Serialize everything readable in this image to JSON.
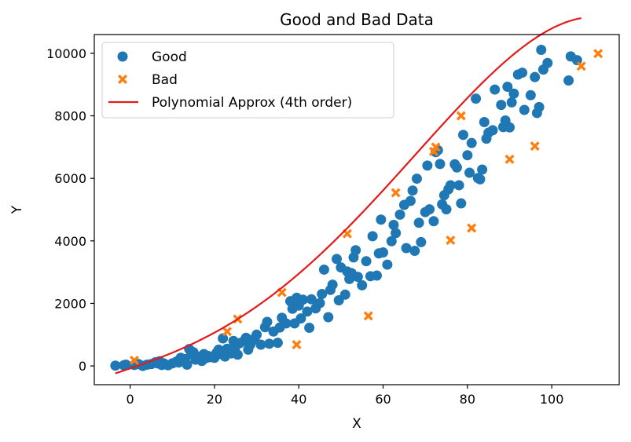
{
  "chart_data": {
    "type": "scatter",
    "title": "Good and Bad Data",
    "xlabel": "X",
    "ylabel": "Y",
    "xlim": [
      -8.5,
      116
    ],
    "ylim": [
      -600,
      10600
    ],
    "xticks": [
      0,
      20,
      40,
      60,
      80,
      100
    ],
    "yticks": [
      0,
      2000,
      4000,
      6000,
      8000,
      10000
    ],
    "grid": false,
    "legend_position": "top-left",
    "series": [
      {
        "name": "Good",
        "type": "scatter",
        "marker": "circle",
        "color": "#1f77b4",
        "points": [
          [
            -3.5,
            10
          ],
          [
            -1.5,
            20
          ],
          [
            -1,
            40
          ],
          [
            1,
            30
          ],
          [
            2,
            60
          ],
          [
            3,
            0
          ],
          [
            4,
            40
          ],
          [
            5,
            60
          ],
          [
            6,
            120
          ],
          [
            6.5,
            80
          ],
          [
            7,
            150
          ],
          [
            7.5,
            30
          ],
          [
            8,
            80
          ],
          [
            9,
            20
          ],
          [
            10,
            80
          ],
          [
            11,
            140
          ],
          [
            11.5,
            110
          ],
          [
            12,
            260
          ],
          [
            13,
            220
          ],
          [
            13.5,
            40
          ],
          [
            14,
            540
          ],
          [
            14.5,
            380
          ],
          [
            15,
            440
          ],
          [
            15.5,
            200
          ],
          [
            16,
            300
          ],
          [
            16.5,
            280
          ],
          [
            17,
            160
          ],
          [
            17.5,
            380
          ],
          [
            18,
            250
          ],
          [
            18.5,
            320
          ],
          [
            19,
            280
          ],
          [
            20,
            260
          ],
          [
            20.5,
            420
          ],
          [
            21,
            520
          ],
          [
            21.5,
            380
          ],
          [
            22,
            880
          ],
          [
            22.5,
            300
          ],
          [
            23,
            550
          ],
          [
            24,
            400
          ],
          [
            24.5,
            800
          ],
          [
            25,
            620
          ],
          [
            25.5,
            360
          ],
          [
            26,
            730
          ],
          [
            27,
            800
          ],
          [
            27.5,
            900
          ],
          [
            28,
            520
          ],
          [
            28.5,
            680
          ],
          [
            29,
            820
          ],
          [
            29.5,
            870
          ],
          [
            30,
            1000
          ],
          [
            31,
            680
          ],
          [
            32,
            1240
          ],
          [
            32.5,
            1410
          ],
          [
            33,
            710
          ],
          [
            34,
            1100
          ],
          [
            35,
            740
          ],
          [
            35.5,
            1230
          ],
          [
            36,
            1540
          ],
          [
            37,
            1360
          ],
          [
            38,
            2070
          ],
          [
            38.5,
            1830
          ],
          [
            39,
            1360
          ],
          [
            39.5,
            2180
          ],
          [
            40,
            1930
          ],
          [
            40.5,
            1520
          ],
          [
            41,
            2120
          ],
          [
            42,
            1740
          ],
          [
            42.5,
            1220
          ],
          [
            43,
            2130
          ],
          [
            44,
            1840
          ],
          [
            45,
            2010
          ],
          [
            45.5,
            2300
          ],
          [
            46,
            3080
          ],
          [
            47,
            1560
          ],
          [
            47.5,
            2430
          ],
          [
            48,
            2600
          ],
          [
            49,
            3420
          ],
          [
            49.5,
            2100
          ],
          [
            50,
            3150
          ],
          [
            51,
            2280
          ],
          [
            51.5,
            3020
          ],
          [
            52,
            2780
          ],
          [
            52.5,
            2970
          ],
          [
            53,
            3470
          ],
          [
            53.5,
            3700
          ],
          [
            54,
            2850
          ],
          [
            55,
            2580
          ],
          [
            56,
            3350
          ],
          [
            57,
            2870
          ],
          [
            57.5,
            4150
          ],
          [
            58.5,
            2890
          ],
          [
            59,
            3600
          ],
          [
            59.5,
            4680
          ],
          [
            60,
            3630
          ],
          [
            61,
            3240
          ],
          [
            62,
            3990
          ],
          [
            62.5,
            4510
          ],
          [
            63,
            4250
          ],
          [
            64,
            4840
          ],
          [
            65,
            5150
          ],
          [
            65.5,
            3770
          ],
          [
            66.5,
            5280
          ],
          [
            67,
            5610
          ],
          [
            67.5,
            3680
          ],
          [
            68,
            5990
          ],
          [
            68.5,
            4580
          ],
          [
            69,
            3960
          ],
          [
            70,
            4920
          ],
          [
            70.5,
            6410
          ],
          [
            71,
            5010
          ],
          [
            72,
            4630
          ],
          [
            72.5,
            6840
          ],
          [
            73,
            6900
          ],
          [
            73.5,
            6460
          ],
          [
            74,
            5170
          ],
          [
            74.5,
            5460
          ],
          [
            75,
            5010
          ],
          [
            75.5,
            5650
          ],
          [
            76,
            5780
          ],
          [
            77,
            6450
          ],
          [
            77.5,
            6350
          ],
          [
            78,
            5780
          ],
          [
            78.5,
            5200
          ],
          [
            79,
            7390
          ],
          [
            80,
            6740
          ],
          [
            80.5,
            6180
          ],
          [
            81,
            7130
          ],
          [
            82,
            8550
          ],
          [
            82.5,
            6010
          ],
          [
            83,
            5970
          ],
          [
            83.5,
            6280
          ],
          [
            84,
            7800
          ],
          [
            84.5,
            7270
          ],
          [
            85,
            7460
          ],
          [
            86,
            7540
          ],
          [
            86.5,
            8840
          ],
          [
            88,
            8350
          ],
          [
            88.5,
            7640
          ],
          [
            89,
            7850
          ],
          [
            89.5,
            8930
          ],
          [
            90,
            7630
          ],
          [
            90.5,
            8430
          ],
          [
            91,
            8710
          ],
          [
            92,
            9320
          ],
          [
            93,
            9380
          ],
          [
            93.5,
            8190
          ],
          [
            95,
            8660
          ],
          [
            96,
            9240
          ],
          [
            96.5,
            8090
          ],
          [
            97,
            8280
          ],
          [
            97.5,
            10110
          ],
          [
            98,
            9480
          ],
          [
            99,
            9690
          ],
          [
            104,
            9130
          ],
          [
            104.5,
            9900
          ],
          [
            106,
            9780
          ]
        ]
      },
      {
        "name": "Bad",
        "type": "scatter",
        "marker": "x-filled",
        "color": "#ff7f0e",
        "points": [
          [
            1,
            180
          ],
          [
            23,
            1100
          ],
          [
            25.5,
            1500
          ],
          [
            36,
            2350
          ],
          [
            39.5,
            680
          ],
          [
            51.5,
            4230
          ],
          [
            56.5,
            1600
          ],
          [
            63,
            5540
          ],
          [
            72,
            6860
          ],
          [
            72.5,
            7000
          ],
          [
            76,
            4020
          ],
          [
            78.5,
            8000
          ],
          [
            81,
            4410
          ],
          [
            90,
            6610
          ],
          [
            96,
            7030
          ],
          [
            107,
            9590
          ],
          [
            111,
            9990
          ]
        ]
      },
      {
        "name": "Polynomial Approx (4th order)",
        "type": "line",
        "color": "#e31a1c",
        "coefficients_c0_to_c4": [
          -79.38,
          45.87,
          0.2736,
          0.01735,
          -0.000138
        ],
        "x_range": [
          -3.5,
          107
        ]
      }
    ]
  }
}
